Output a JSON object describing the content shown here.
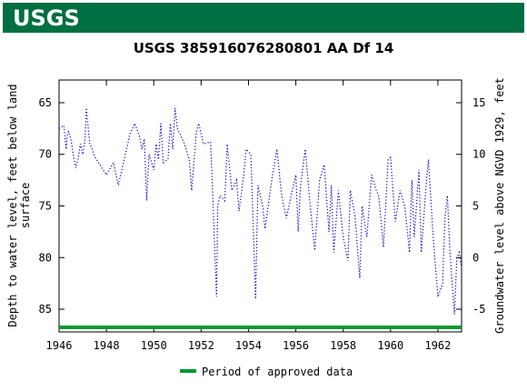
{
  "header": {
    "logo": "USGS"
  },
  "chart_data": {
    "type": "line",
    "title": "USGS 385916076280801 AA Df  14",
    "ylabel": [
      "Depth to water level, feet below land",
      "surface"
    ],
    "y2label": "Groundwater level above NGVD 1929, feet",
    "xlim": [
      1946,
      1963
    ],
    "xticks": [
      1946,
      1948,
      1950,
      1952,
      1954,
      1956,
      1958,
      1960,
      1962
    ],
    "ylim": [
      62.8,
      87.2
    ],
    "yticks": [
      65,
      70,
      75,
      80,
      85
    ],
    "y2lim": [
      17.2,
      -7.2
    ],
    "y2ticks": [
      15,
      10,
      5,
      0,
      -5
    ],
    "series": [
      {
        "color": "#0000cc",
        "x": [
          1946.0,
          1946.2,
          1946.3,
          1946.35,
          1946.4,
          1946.5,
          1946.6,
          1946.7,
          1946.8,
          1946.9,
          1947.0,
          1947.1,
          1947.15,
          1947.3,
          1947.4,
          1947.5,
          1948.0,
          1948.3,
          1948.5,
          1949.0,
          1949.2,
          1949.4,
          1949.5,
          1949.6,
          1949.7,
          1949.8,
          1950.0,
          1950.1,
          1950.2,
          1950.3,
          1950.4,
          1950.6,
          1950.7,
          1950.8,
          1950.9,
          1951.0,
          1951.3,
          1951.5,
          1951.6,
          1951.8,
          1951.9,
          1952.1,
          1952.4,
          1952.5,
          1952.65,
          1952.7,
          1952.8,
          1953.0,
          1953.1,
          1953.3,
          1953.5,
          1953.6,
          1953.8,
          1953.9,
          1954.1,
          1954.3,
          1954.4,
          1954.6,
          1954.7,
          1955.0,
          1955.2,
          1955.4,
          1955.6,
          1955.8,
          1956.0,
          1956.1,
          1956.2,
          1956.4,
          1956.6,
          1956.8,
          1957.0,
          1957.2,
          1957.4,
          1957.5,
          1957.6,
          1957.8,
          1958.0,
          1958.2,
          1958.3,
          1958.5,
          1958.7,
          1958.8,
          1959.0,
          1959.2,
          1959.4,
          1959.5,
          1959.7,
          1959.9,
          1960.0,
          1960.2,
          1960.4,
          1960.6,
          1960.8,
          1960.9,
          1961.0,
          1961.2,
          1961.3,
          1961.5,
          1961.6,
          1961.8,
          1962.0,
          1962.2,
          1962.3,
          1962.4,
          1962.5,
          1962.6,
          1962.7,
          1962.8,
          1962.9,
          1963.0
        ],
        "values": [
          67.5,
          67.2,
          69.5,
          68,
          67.8,
          68.5,
          70,
          71.3,
          70.5,
          69,
          70,
          68.5,
          65.5,
          69,
          69.5,
          70.2,
          72,
          70.8,
          73,
          68,
          67,
          68.3,
          69.5,
          68.5,
          74.5,
          70,
          71.5,
          69,
          70.5,
          67,
          70.8,
          70.5,
          67,
          69.5,
          65.5,
          67.5,
          69,
          70.5,
          73.5,
          67.8,
          67,
          69,
          68.8,
          74.5,
          83.8,
          75,
          74,
          74.5,
          69,
          73.5,
          72.5,
          75.5,
          72,
          69.5,
          70,
          84,
          73,
          75,
          77.2,
          72.2,
          69.5,
          74,
          76.2,
          74,
          72,
          77.5,
          73,
          69.5,
          74.8,
          79.3,
          72.5,
          71,
          77.5,
          73,
          79.5,
          73.5,
          78,
          80.3,
          73.5,
          76,
          82,
          75,
          78,
          72,
          73.5,
          74,
          79,
          70.5,
          70.3,
          76.5,
          73.5,
          75,
          79.5,
          72.5,
          78,
          71.5,
          79.5,
          73,
          70.5,
          78,
          83.8,
          82.5,
          76,
          74,
          79,
          82.5,
          85.5,
          80,
          79.5,
          81
        ]
      }
    ],
    "approved": {
      "name": "Period of approved data",
      "color": "#009933",
      "start": 1946,
      "end": 1963
    }
  }
}
